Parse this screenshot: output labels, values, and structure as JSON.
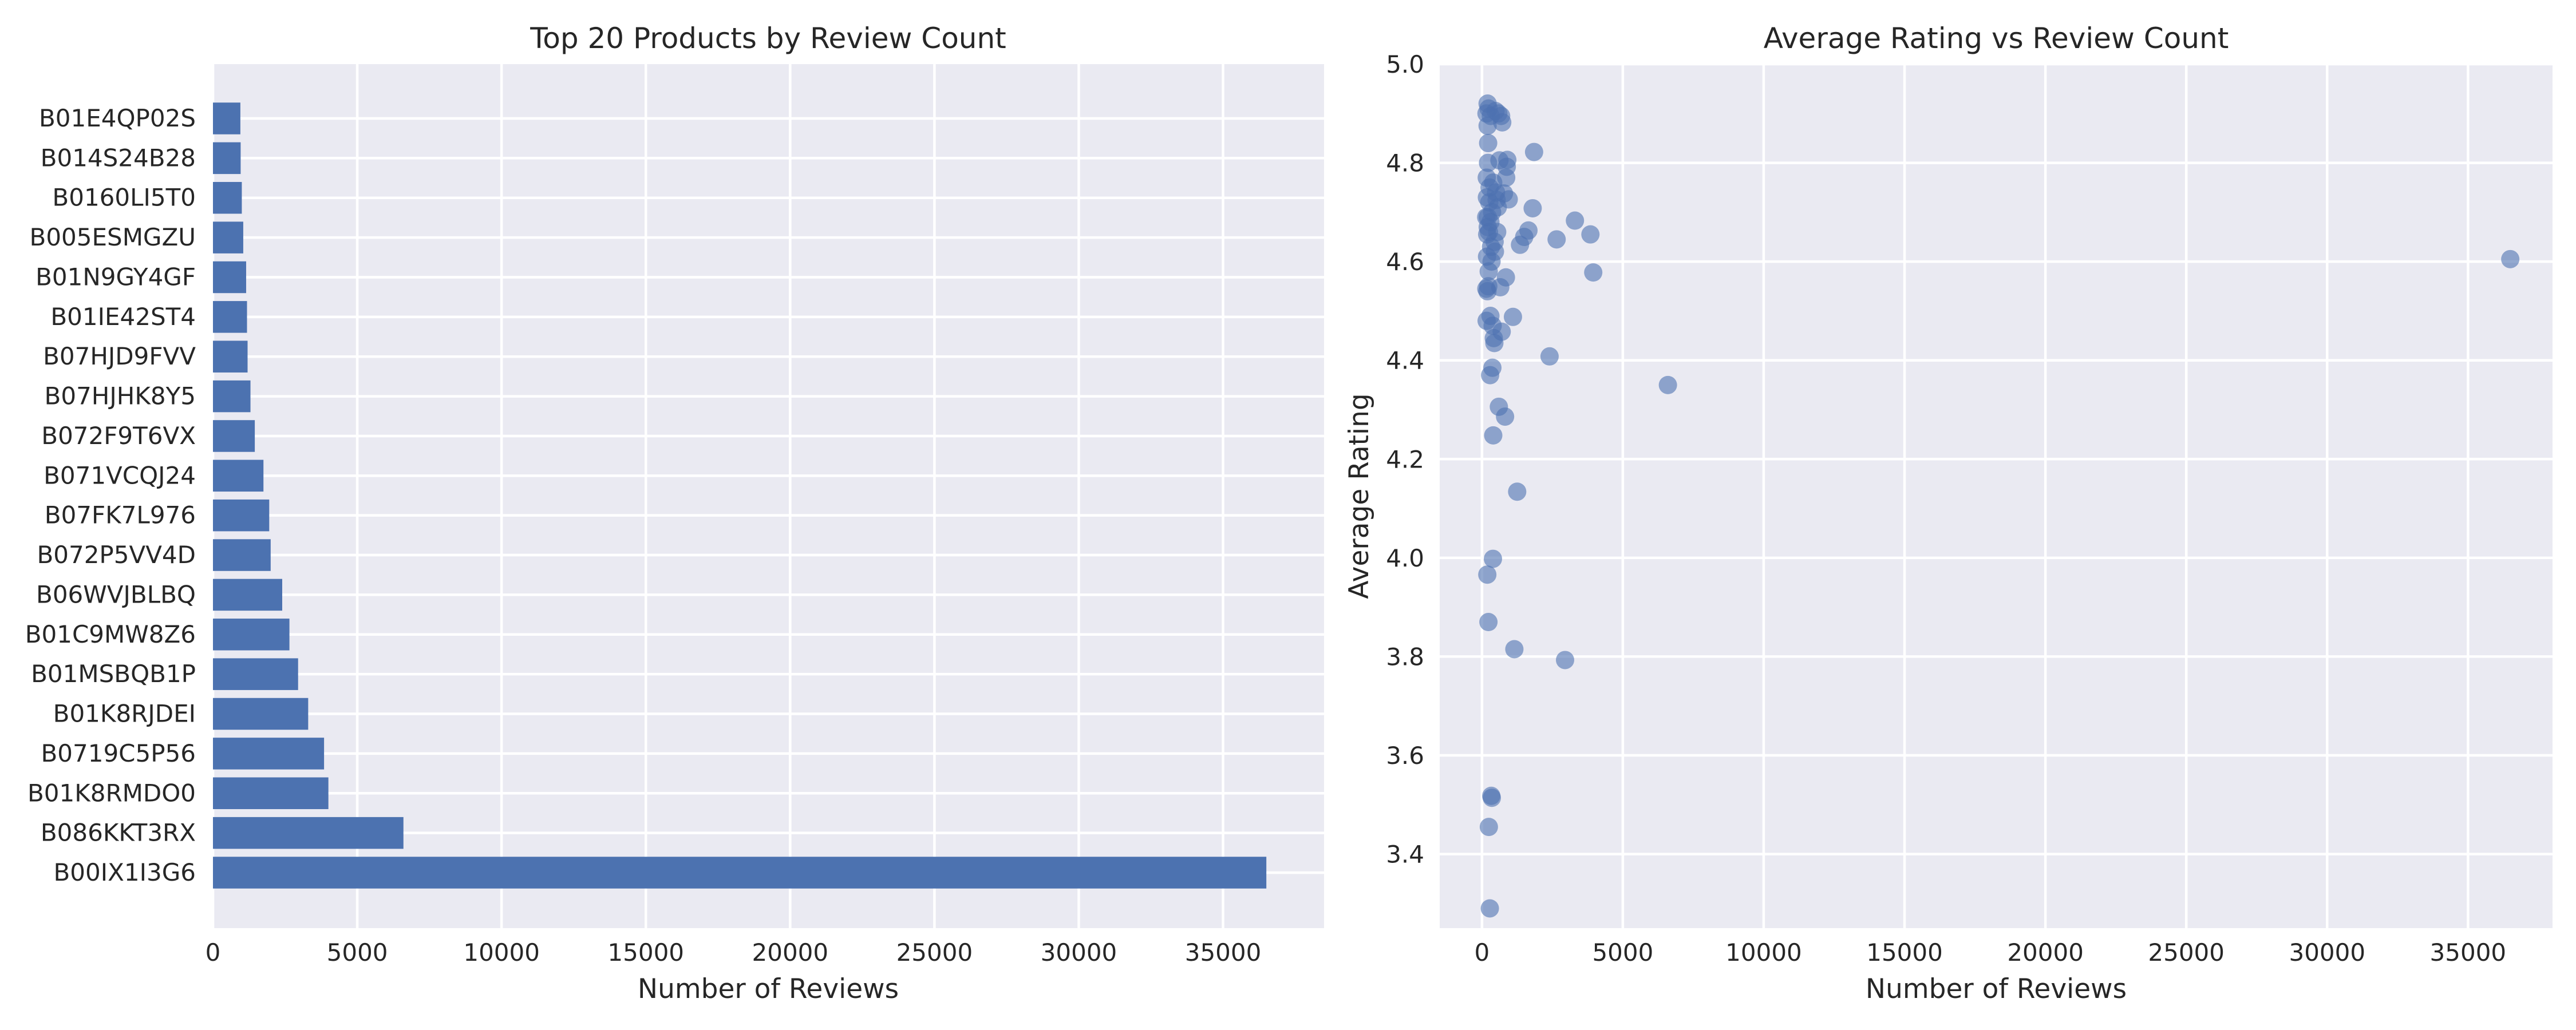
{
  "colors": {
    "bar": "#4c72b0",
    "scatter": "#4c72b0",
    "plot_background": "#eaeaf2",
    "grid": "#ffffff"
  },
  "chart_data": [
    {
      "type": "bar",
      "orientation": "horizontal",
      "title": "Top 20 Products by Review Count",
      "xlabel": "Number of Reviews",
      "ylabel": "",
      "xlim": [
        0,
        38500
      ],
      "xticks": [
        "0",
        "5000",
        "10000",
        "15000",
        "20000",
        "25000",
        "30000",
        "35000"
      ],
      "grid": true,
      "categories": [
        "B01E4QP02S",
        "B014S24B28",
        "B0160LI5T0",
        "B005ESMGZU",
        "B01N9GY4GF",
        "B01IE42ST4",
        "B07HJD9FVV",
        "B07HJHK8Y5",
        "B072F9T6VX",
        "B071VCQJ24",
        "B07FK7L976",
        "B072P5VV4D",
        "B06WVJBLBQ",
        "B01C9MW8Z6",
        "B01MSBQB1P",
        "B01K8RJDEI",
        "B0719C5P56",
        "B01K8RMDO0",
        "B086KKT3RX",
        "B00IX1I3G6"
      ],
      "values": [
        950,
        960,
        1000,
        1050,
        1150,
        1180,
        1200,
        1300,
        1450,
        1750,
        1950,
        2000,
        2400,
        2650,
        2950,
        3300,
        3850,
        4000,
        6600,
        36500
      ]
    },
    {
      "type": "scatter",
      "title": "Average Rating vs Review Count",
      "xlabel": "Number of Reviews",
      "ylabel": "Average Rating",
      "xlim": [
        -1500,
        38000
      ],
      "ylim": [
        3.25,
        5.0
      ],
      "xticks": [
        "0",
        "5000",
        "10000",
        "15000",
        "20000",
        "25000",
        "30000",
        "35000"
      ],
      "yticks": [
        "3.4",
        "3.6",
        "3.8",
        "4.0",
        "4.2",
        "4.4",
        "4.6",
        "4.8",
        "5.0"
      ],
      "grid": true,
      "points": [
        [
          36500,
          4.605
        ],
        [
          6600,
          4.35
        ],
        [
          3950,
          4.578
        ],
        [
          3850,
          4.655
        ],
        [
          3300,
          4.683
        ],
        [
          2950,
          3.793
        ],
        [
          2650,
          4.645
        ],
        [
          2400,
          4.408
        ],
        [
          1850,
          4.822
        ],
        [
          1800,
          4.708
        ],
        [
          1650,
          4.663
        ],
        [
          1500,
          4.65
        ],
        [
          1350,
          4.634
        ],
        [
          1250,
          4.134
        ],
        [
          1150,
          3.815
        ],
        [
          1100,
          4.488
        ],
        [
          950,
          4.726
        ],
        [
          900,
          4.806
        ],
        [
          880,
          4.792
        ],
        [
          860,
          4.77
        ],
        [
          850,
          4.568
        ],
        [
          820,
          4.286
        ],
        [
          780,
          4.738
        ],
        [
          720,
          4.882
        ],
        [
          700,
          4.458
        ],
        [
          680,
          4.895
        ],
        [
          650,
          4.548
        ],
        [
          620,
          4.805
        ],
        [
          600,
          4.306
        ],
        [
          580,
          4.9
        ],
        [
          560,
          4.71
        ],
        [
          540,
          4.66
        ],
        [
          520,
          4.725
        ],
        [
          500,
          4.74
        ],
        [
          480,
          4.905
        ],
        [
          460,
          4.62
        ],
        [
          450,
          4.64
        ],
        [
          440,
          4.435
        ],
        [
          420,
          4.445
        ],
        [
          400,
          4.76
        ],
        [
          400,
          4.248
        ],
        [
          390,
          3.998
        ],
        [
          380,
          4.47
        ],
        [
          370,
          4.385
        ],
        [
          360,
          4.7
        ],
        [
          350,
          3.514
        ],
        [
          340,
          4.6
        ],
        [
          330,
          3.518
        ],
        [
          320,
          4.63
        ],
        [
          310,
          4.895
        ],
        [
          300,
          4.68
        ],
        [
          300,
          4.49
        ],
        [
          290,
          4.37
        ],
        [
          280,
          3.29
        ],
        [
          270,
          4.75
        ],
        [
          260,
          4.72
        ],
        [
          250,
          4.66
        ],
        [
          245,
          3.455
        ],
        [
          240,
          4.58
        ],
        [
          235,
          4.91
        ],
        [
          230,
          3.87
        ],
        [
          225,
          4.55
        ],
        [
          220,
          4.84
        ],
        [
          215,
          4.8
        ],
        [
          210,
          4.69
        ],
        [
          205,
          4.67
        ],
        [
          200,
          4.92
        ],
        [
          200,
          4.875
        ],
        [
          195,
          4.54
        ],
        [
          190,
          3.966
        ],
        [
          185,
          4.655
        ],
        [
          180,
          4.61
        ],
        [
          175,
          4.73
        ],
        [
          170,
          4.77
        ],
        [
          165,
          4.48
        ],
        [
          160,
          4.9
        ],
        [
          155,
          4.545
        ],
        [
          150,
          4.69
        ]
      ]
    }
  ]
}
